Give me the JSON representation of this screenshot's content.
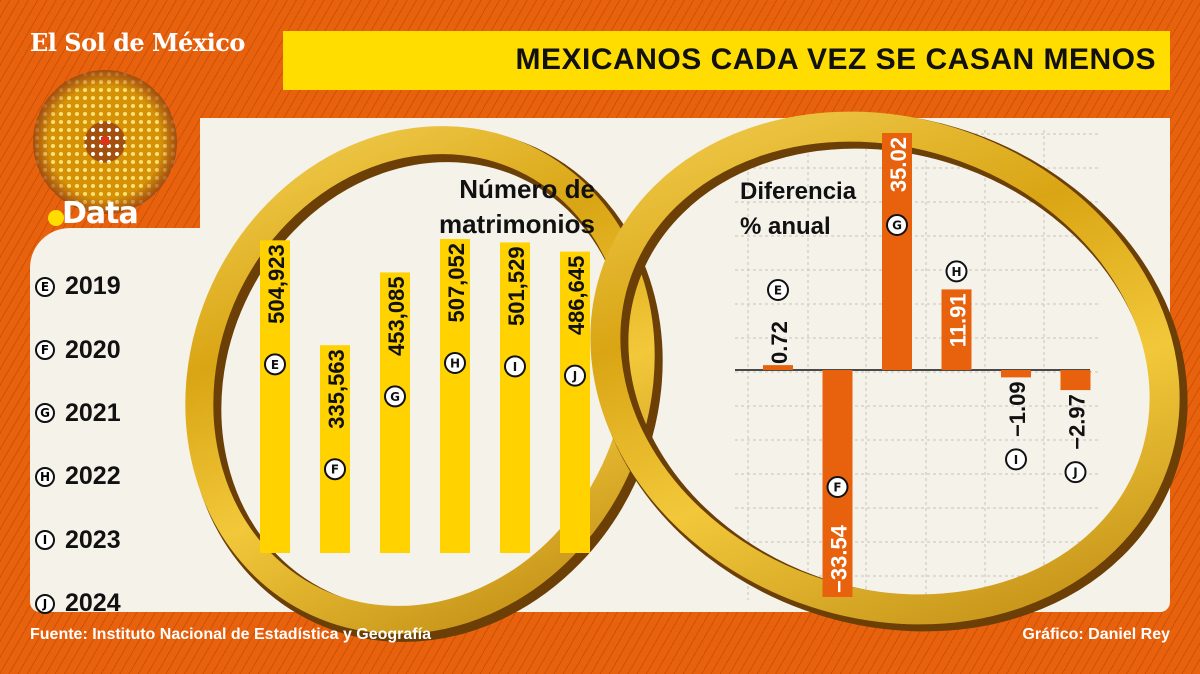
{
  "brand": {
    "masthead": "El Sol de México",
    "section": "Data"
  },
  "title": "MEXICANOS CADA VEZ SE CASAN MENOS",
  "legend": [
    {
      "key": "E",
      "year": "2019"
    },
    {
      "key": "F",
      "year": "2020"
    },
    {
      "key": "G",
      "year": "2021"
    },
    {
      "key": "H",
      "year": "2022"
    },
    {
      "key": "I",
      "year": "2023"
    },
    {
      "key": "J",
      "year": "2024"
    }
  ],
  "chart_data": [
    {
      "type": "bar",
      "title": "Número de matrimonios",
      "title_lines": [
        "Número de",
        "matrimonios"
      ],
      "categories": [
        "E",
        "F",
        "G",
        "H",
        "I",
        "J"
      ],
      "values": [
        504923,
        335563,
        453085,
        507052,
        501529,
        486645
      ],
      "labels": [
        "504,923",
        "335,563",
        "453,085",
        "507,052",
        "501,529",
        "486,645"
      ],
      "color": "#FFD200",
      "ylim": [
        0,
        510000
      ]
    },
    {
      "type": "bar",
      "title": "Diferencia % anual",
      "title_lines": [
        "Diferencia",
        "% anual"
      ],
      "categories": [
        "E",
        "F",
        "G",
        "H",
        "I",
        "J"
      ],
      "values": [
        0.72,
        -33.54,
        35.02,
        11.91,
        -1.09,
        -2.97
      ],
      "labels": [
        "0.72",
        "−33.54",
        "35.02",
        "11.91",
        "−1.09",
        "−2.97"
      ],
      "color": "#E8620E",
      "ylim": [
        -35,
        35
      ],
      "grid": true
    }
  ],
  "footer": {
    "source": "Fuente: Instituto Nacional de Estadística y Geografía",
    "credit": "Gráfico: Daniel Rey"
  },
  "colors": {
    "background": "#E8620E",
    "title_bar": "#FFDD00",
    "panel": "#F5F2EA",
    "gold": "#D9A514"
  }
}
